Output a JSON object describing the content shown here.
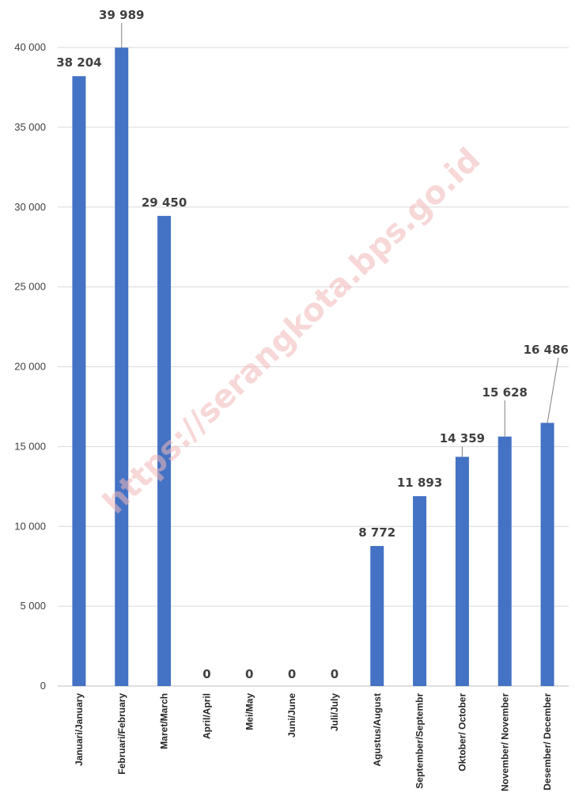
{
  "chart_data": {
    "type": "bar",
    "categories": [
      "Januari/January",
      "Februari/February",
      "Maret/March",
      "April/April",
      "Mei/May",
      "Juni/June",
      "Juli/July",
      "Agustus/August",
      "September/Septembr",
      "Oktober/ October",
      "November/ November",
      "Desember/ December"
    ],
    "values": [
      38204,
      39989,
      29450,
      0,
      0,
      0,
      0,
      8772,
      11893,
      14359,
      15628,
      16486
    ],
    "data_labels": [
      "38 204",
      "39 989",
      "29 450",
      "0",
      "0",
      "0",
      "0",
      "8 772",
      "11 893",
      "14 359",
      "15 628",
      "16 486"
    ],
    "yticks": [
      0,
      5000,
      10000,
      15000,
      20000,
      25000,
      30000,
      35000,
      40000
    ],
    "ytick_labels": [
      "0",
      "5 000",
      "10 000",
      "15 000",
      "20 000",
      "25 000",
      "30 000",
      "35 000",
      "40 000"
    ],
    "ylim": [
      0,
      40000
    ],
    "grid": true,
    "bar_color": "#4472c4",
    "watermark": "https://serangkota.bps.go.id"
  }
}
